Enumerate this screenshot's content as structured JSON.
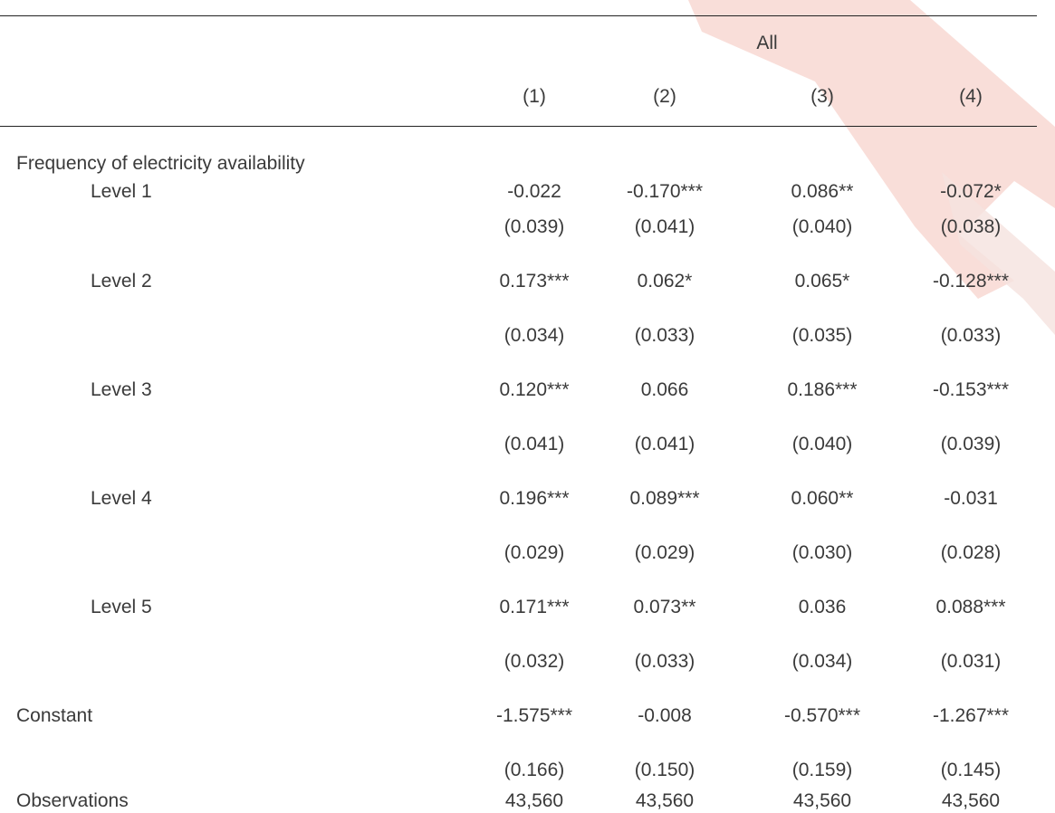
{
  "table": {
    "group_header": "All",
    "columns": [
      "(1)",
      "(2)",
      "(3)",
      "(4)"
    ],
    "section_label": "Frequency of electricity availability",
    "rows": [
      {
        "label": "Level 1",
        "coef": [
          "-0.022",
          "-0.170***",
          "0.086**",
          "-0.072*"
        ],
        "se": [
          "(0.039)",
          "(0.041)",
          "(0.040)",
          "(0.038)"
        ]
      },
      {
        "label": "Level 2",
        "coef": [
          "0.173***",
          "0.062*",
          "0.065*",
          "-0.128***"
        ],
        "se": [
          "(0.034)",
          "(0.033)",
          "(0.035)",
          "(0.033)"
        ]
      },
      {
        "label": "Level 3",
        "coef": [
          "0.120***",
          "0.066",
          "0.186***",
          "-0.153***"
        ],
        "se": [
          "(0.041)",
          "(0.041)",
          "(0.040)",
          "(0.039)"
        ]
      },
      {
        "label": "Level 4",
        "coef": [
          "0.196***",
          "0.089***",
          "0.060**",
          "-0.031"
        ],
        "se": [
          "(0.029)",
          "(0.029)",
          "(0.030)",
          "(0.028)"
        ]
      },
      {
        "label": "Level 5",
        "coef": [
          "0.171***",
          "0.073**",
          "0.036",
          "0.088***"
        ],
        "se": [
          "(0.032)",
          "(0.033)",
          "(0.034)",
          "(0.031)"
        ]
      }
    ],
    "constant": {
      "label": "Constant",
      "coef": [
        "-1.575***",
        "-0.008",
        "-0.570***",
        "-1.267***"
      ],
      "se": [
        "(0.166)",
        "(0.150)",
        "(0.159)",
        "(0.145)"
      ]
    },
    "observations": {
      "label": "Observations",
      "values": [
        "43,560",
        "43,560",
        "43,560",
        "43,560"
      ]
    }
  },
  "colors": {
    "watermark": "#f2c4bd",
    "text": "#3a3a3a",
    "rule": "#222222"
  }
}
